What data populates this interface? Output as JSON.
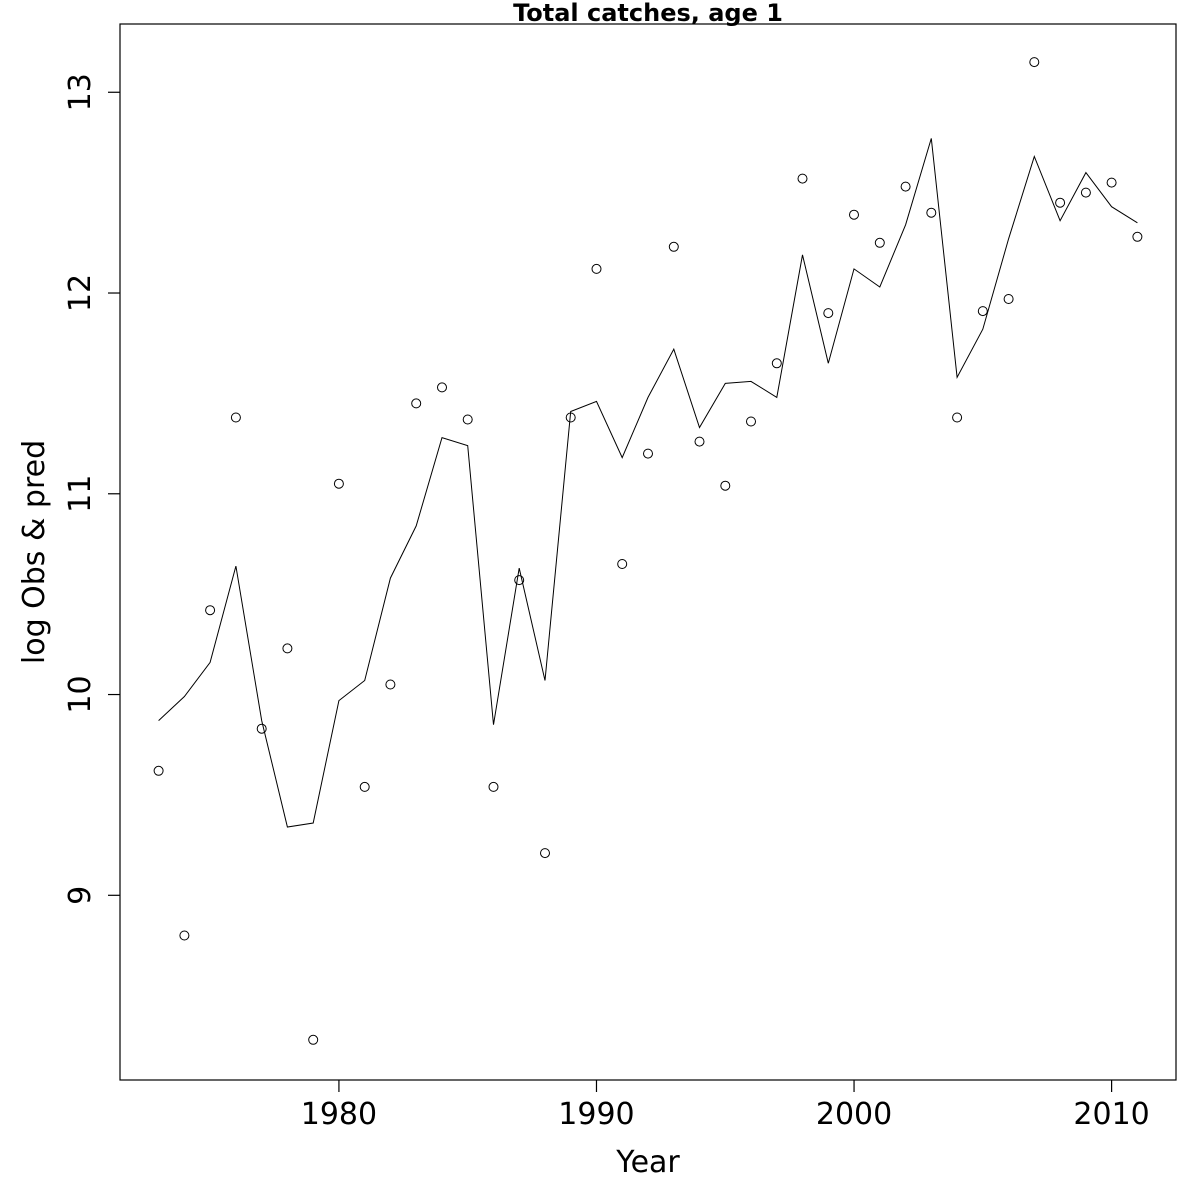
{
  "chart_data": {
    "type": "scatter",
    "title": "Total catches, age 1",
    "xlabel": "Year",
    "ylabel": "log Obs & pred",
    "xlim": [
      1971.5,
      2012.5
    ],
    "ylim": [
      8.08,
      13.34
    ],
    "xticks": [
      1980,
      1990,
      2000,
      2010
    ],
    "yticks": [
      9,
      10,
      11,
      12,
      13
    ],
    "grid": false,
    "legend": "none",
    "series": [
      {
        "mark": "points",
        "x": [
          1973,
          1974,
          1975,
          1976,
          1977,
          1978,
          1979,
          1980,
          1981,
          1982,
          1983,
          1984,
          1985,
          1986,
          1987,
          1988,
          1989,
          1990,
          1991,
          1992,
          1993,
          1994,
          1995,
          1996,
          1997,
          1998,
          1999,
          2000,
          2001,
          2002,
          2003,
          2004,
          2005,
          2006,
          2007,
          2008,
          2009,
          2010,
          2011
        ],
        "y": [
          9.62,
          8.8,
          10.42,
          11.38,
          9.83,
          10.23,
          8.28,
          11.05,
          9.54,
          10.05,
          11.45,
          11.53,
          11.37,
          9.54,
          10.57,
          9.21,
          11.38,
          12.12,
          10.65,
          11.2,
          12.23,
          11.26,
          11.04,
          11.36,
          11.65,
          12.57,
          11.9,
          12.39,
          12.25,
          12.53,
          12.4,
          11.38,
          11.91,
          11.97,
          13.15,
          12.45,
          12.5,
          12.55,
          12.28
        ]
      },
      {
        "mark": "line",
        "x": [
          1973,
          1974,
          1975,
          1976,
          1977,
          1978,
          1979,
          1980,
          1981,
          1982,
          1983,
          1984,
          1985,
          1986,
          1987,
          1988,
          1989,
          1990,
          1991,
          1992,
          1993,
          1994,
          1995,
          1996,
          1997,
          1998,
          1999,
          2000,
          2001,
          2002,
          2003,
          2004,
          2005,
          2006,
          2007,
          2008,
          2009,
          2010,
          2011
        ],
        "y": [
          9.87,
          9.99,
          10.16,
          10.64,
          9.87,
          9.34,
          9.36,
          9.97,
          10.07,
          10.58,
          10.84,
          11.28,
          11.24,
          9.85,
          10.63,
          10.07,
          11.41,
          11.46,
          11.18,
          11.48,
          11.72,
          11.33,
          11.55,
          11.56,
          11.48,
          12.19,
          11.65,
          12.12,
          12.03,
          12.34,
          12.77,
          11.58,
          11.82,
          12.27,
          12.68,
          12.36,
          12.6,
          12.43,
          12.35
        ]
      }
    ]
  }
}
